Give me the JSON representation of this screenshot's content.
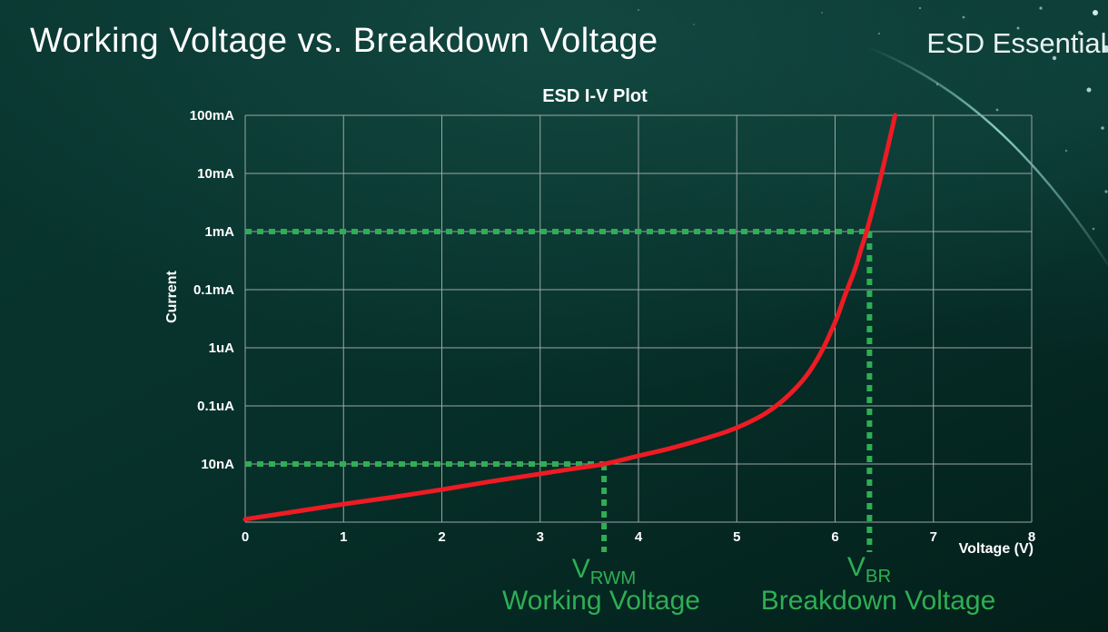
{
  "page": {
    "title": "Working Voltage vs. Breakdown Voltage",
    "brand": "ESD Essentials"
  },
  "chart_data": {
    "type": "line",
    "title": "ESD I-V Plot",
    "xlabel": "Voltage (V)",
    "ylabel": "Current",
    "xlim": [
      0,
      8
    ],
    "x_ticks": [
      0,
      1,
      2,
      3,
      4,
      5,
      6,
      7,
      8
    ],
    "y_tick_labels": [
      "100mA",
      "10mA",
      "1mA",
      "0.1mA",
      "1uA",
      "0.1uA",
      "10nA"
    ],
    "y_scale_note": "log scale, evenly spaced decade rows top to bottom; bottom gridline unlabeled",
    "grid": true,
    "grid_color": "#9aa8a4",
    "series": [
      {
        "name": "ESD I-V curve",
        "color": "#ee1b24",
        "points_note": "[voltage (V), row index from top gridline 100mA=0 .. bottom=7]",
        "points": [
          [
            0,
            6.95
          ],
          [
            0.5,
            6.82
          ],
          [
            1,
            6.69
          ],
          [
            1.5,
            6.57
          ],
          [
            2,
            6.44
          ],
          [
            2.5,
            6.3
          ],
          [
            3,
            6.17
          ],
          [
            3.3,
            6.09
          ],
          [
            3.65,
            6.0
          ],
          [
            4,
            5.86
          ],
          [
            4.3,
            5.74
          ],
          [
            4.6,
            5.6
          ],
          [
            4.9,
            5.44
          ],
          [
            5.1,
            5.3
          ],
          [
            5.3,
            5.12
          ],
          [
            5.5,
            4.86
          ],
          [
            5.7,
            4.5
          ],
          [
            5.85,
            4.1
          ],
          [
            6.0,
            3.56
          ],
          [
            6.1,
            3.1
          ],
          [
            6.2,
            2.66
          ],
          [
            6.26,
            2.33
          ],
          [
            6.32,
            2.0
          ],
          [
            6.4,
            1.5
          ],
          [
            6.48,
            0.95
          ],
          [
            6.55,
            0.45
          ],
          [
            6.61,
            0
          ]
        ]
      }
    ],
    "marker_color": "#2fae54",
    "markers": [
      {
        "id": "v_rwm",
        "symbol": "V",
        "subscript": "RWM",
        "caption": "Working Voltage",
        "voltage": 3.65,
        "row": 6,
        "current_level": "10nA"
      },
      {
        "id": "v_br",
        "symbol": "V",
        "subscript": "BR",
        "caption": "Breakdown Voltage",
        "voltage": 6.35,
        "row": 2,
        "current_level": "1mA"
      }
    ]
  }
}
